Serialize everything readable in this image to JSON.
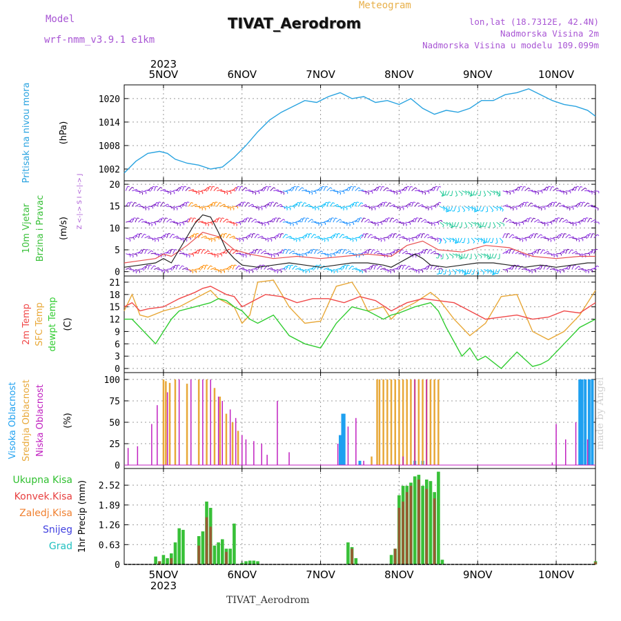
{
  "header": {
    "model_label": "Model",
    "model_name": "wrf-nmm_v3.9.1 e1km",
    "meteogram_label": "Meteogram",
    "title": "TIVAT_Aerodrom",
    "coords": "lon,lat (18.7312E, 42.4N)",
    "elevation": "Nadmorska Visina 2m",
    "model_elevation": "Nadmorska Visina u modelu 109.099m"
  },
  "footer": {
    "title": "TIVAT_Aerodrom",
    "watermark": "made by Angel"
  },
  "time_axis": {
    "year": "2023",
    "ticks": [
      {
        "label": "5NOV",
        "day": 0
      },
      {
        "label": "6NOV",
        "day": 1
      },
      {
        "label": "7NOV",
        "day": 2
      },
      {
        "label": "8NOV",
        "day": 3
      },
      {
        "label": "9NOV",
        "day": 4
      },
      {
        "label": "10NOV",
        "day": 5
      }
    ],
    "start_day": -0.5,
    "end_day": 5.5
  },
  "colors": {
    "pressure": "#29a3e0",
    "temp2m": "#f04848",
    "sfc_temp": "#e8a838",
    "dewpoint": "#30cc30",
    "cloud_high": "#1ea0f0",
    "cloud_mid": "#e8a838",
    "cloud_low": "#c020c0",
    "precip_total": "#38c038",
    "precip_conv": "#c03030",
    "wind_speed": "#202020",
    "wind_gust": "#e85050"
  },
  "chart_data": [
    {
      "type": "line",
      "name": "pressure",
      "ylabel_left": "Pritisak na nivou mora",
      "ylabel_unit": "(hPa)",
      "yticks": [
        1002,
        1008,
        1014,
        1020
      ],
      "ylim": [
        999,
        1023.5
      ],
      "grid": true,
      "series": [
        {
          "x": [
            -0.5,
            -0.35,
            -0.2,
            -0.05,
            0.05,
            0.15,
            0.3,
            0.45,
            0.6,
            0.75,
            0.9,
            1.05,
            1.2,
            1.35,
            1.5,
            1.65,
            1.8,
            1.95,
            2.1,
            2.25,
            2.4,
            2.55,
            2.7,
            2.85,
            3.0,
            3.15,
            3.3,
            3.45,
            3.6,
            3.75,
            3.9,
            4.05,
            4.2,
            4.35,
            4.5,
            4.65,
            4.8,
            4.95,
            5.1,
            5.25,
            5.4,
            5.5
          ],
          "y": [
            1001,
            1004,
            1006,
            1006.5,
            1006,
            1004.5,
            1003.5,
            1003,
            1002,
            1002.5,
            1005,
            1008,
            1011.5,
            1014.5,
            1016.5,
            1018,
            1019.5,
            1019,
            1020.5,
            1021.5,
            1020,
            1020.5,
            1019,
            1019.5,
            1018.5,
            1020,
            1017.5,
            1016,
            1017,
            1016.5,
            1017.5,
            1019.5,
            1019.5,
            1021,
            1021.5,
            1022.5,
            1021,
            1019.5,
            1018.5,
            1018,
            1017,
            1015.5
          ]
        }
      ]
    },
    {
      "type": "line",
      "name": "wind",
      "ylabel_left": "10m Vjetar Brzina i Pravac",
      "ylabel_unit": "(m/s)",
      "compass": "Z <-|-> S   I <-|-> J",
      "yticks": [
        0,
        5,
        10,
        15,
        20
      ],
      "ylim": [
        -1,
        20.8
      ],
      "grid": true,
      "series": [
        {
          "name": "speed",
          "x": [
            -0.5,
            -0.3,
            -0.1,
            0.0,
            0.1,
            0.2,
            0.3,
            0.4,
            0.5,
            0.6,
            0.7,
            0.8,
            0.9,
            1.0,
            1.2,
            1.4,
            1.6,
            1.8,
            2.0,
            2.2,
            2.4,
            2.6,
            2.8,
            2.9,
            3.0,
            3.1,
            3.2,
            3.3,
            3.4,
            3.6,
            3.8,
            4.0,
            4.2,
            4.4,
            4.6,
            4.8,
            5.0,
            5.2,
            5.4,
            5.5
          ],
          "y": [
            1,
            1.5,
            2,
            3,
            2,
            5,
            8,
            11,
            13,
            12.5,
            9,
            5,
            3,
            1.5,
            1,
            1.5,
            2,
            1.5,
            1,
            1.5,
            2,
            2,
            1.5,
            1,
            2,
            3,
            4,
            3,
            1.5,
            1,
            1.5,
            2,
            2,
            1.5,
            1,
            1.5,
            1,
            1.5,
            2,
            2
          ]
        },
        {
          "name": "gust",
          "x": [
            -0.5,
            -0.3,
            -0.1,
            0.0,
            0.1,
            0.3,
            0.5,
            0.7,
            0.9,
            1.1,
            1.4,
            1.7,
            2.0,
            2.3,
            2.6,
            2.9,
            3.1,
            3.3,
            3.5,
            3.8,
            4.1,
            4.4,
            4.7,
            5.0,
            5.3,
            5.5
          ],
          "y": [
            2,
            2.5,
            3,
            4,
            3.5,
            6,
            9,
            8,
            5,
            4,
            3,
            3.5,
            3,
            3.5,
            4,
            3.5,
            6,
            7,
            5,
            4.5,
            6,
            5.5,
            3.5,
            3,
            3.5,
            3.5
          ]
        }
      ]
    },
    {
      "type": "line",
      "name": "temperature",
      "ylabel_left": [
        "2m Temp",
        "SFC Temp",
        "dewpt Temp"
      ],
      "ylabel_unit": "(C)",
      "yticks": [
        0,
        3,
        6,
        9,
        12,
        15,
        18,
        21
      ],
      "ylim": [
        -1,
        22.5
      ],
      "grid": true,
      "series": [
        {
          "name": "2m Temp",
          "x": [
            -0.5,
            -0.4,
            -0.3,
            -0.2,
            0.0,
            0.2,
            0.4,
            0.5,
            0.6,
            0.7,
            0.8,
            0.9,
            1.0,
            1.1,
            1.3,
            1.5,
            1.7,
            1.9,
            2.1,
            2.3,
            2.5,
            2.7,
            2.9,
            3.1,
            3.3,
            3.5,
            3.7,
            3.9,
            4.1,
            4.3,
            4.5,
            4.7,
            4.9,
            5.1,
            5.3,
            5.5
          ],
          "y": [
            15,
            16,
            14,
            14.5,
            15,
            17,
            18.5,
            19.5,
            20,
            19,
            18,
            17.5,
            15,
            16,
            18,
            17.5,
            16,
            17,
            17,
            16,
            17.5,
            16.5,
            14,
            16,
            17,
            16.5,
            16,
            14,
            12,
            12.5,
            13,
            12,
            12.5,
            14,
            13.5,
            16
          ]
        },
        {
          "name": "SFC Temp",
          "x": [
            -0.5,
            -0.4,
            -0.3,
            -0.2,
            0.0,
            0.2,
            0.4,
            0.5,
            0.6,
            0.7,
            0.8,
            0.9,
            1.0,
            1.1,
            1.2,
            1.4,
            1.6,
            1.8,
            2.0,
            2.2,
            2.4,
            2.5,
            2.6,
            2.8,
            2.9,
            3.0,
            3.2,
            3.4,
            3.5,
            3.7,
            3.9,
            4.1,
            4.3,
            4.5,
            4.7,
            4.9,
            5.1,
            5.3,
            5.5
          ],
          "y": [
            14,
            18,
            13,
            12.5,
            14,
            15,
            17,
            18,
            19,
            17,
            16,
            15,
            11,
            13,
            21,
            21.5,
            15,
            11,
            11.5,
            20,
            21,
            18,
            14,
            15,
            12,
            14,
            16,
            18.5,
            17,
            12,
            8,
            11,
            17.5,
            18,
            9,
            7,
            9,
            13,
            19
          ]
        },
        {
          "name": "dewpt Temp",
          "x": [
            -0.5,
            -0.4,
            -0.3,
            -0.2,
            -0.1,
            0.0,
            0.1,
            0.2,
            0.4,
            0.6,
            0.7,
            0.8,
            0.9,
            1.0,
            1.1,
            1.2,
            1.4,
            1.6,
            1.8,
            2.0,
            2.2,
            2.4,
            2.6,
            2.8,
            2.9,
            3.0,
            3.2,
            3.4,
            3.5,
            3.6,
            3.8,
            3.9,
            4.0,
            4.1,
            4.3,
            4.5,
            4.7,
            4.8,
            4.9,
            5.1,
            5.3,
            5.5
          ],
          "y": [
            12,
            12,
            10,
            8,
            6,
            9,
            12,
            14,
            15,
            16,
            17,
            16.5,
            15,
            14,
            12,
            11,
            13,
            8,
            6,
            5,
            11,
            15,
            14,
            12,
            13,
            13.5,
            15,
            16,
            14,
            10,
            3,
            5,
            2,
            3,
            0,
            4,
            0.5,
            1,
            2,
            6,
            10,
            12
          ]
        }
      ]
    },
    {
      "type": "bar",
      "name": "clouds",
      "ylabel_left": [
        "Visoka Oblacnost",
        "Srednja Oblacnost",
        "Niska Oblacnost"
      ],
      "ylabel_unit": "(%)",
      "yticks": [
        0,
        25,
        50,
        75,
        100
      ],
      "ylim": [
        -4,
        108
      ],
      "grid": true,
      "series": [
        {
          "name": "Visoka Oblacnost",
          "x": [
            2.25,
            2.28,
            2.3,
            2.5,
            3.2,
            3.3,
            5.3,
            5.33,
            5.37,
            5.42,
            5.46
          ],
          "y": [
            35,
            60,
            60,
            5,
            5,
            5,
            100,
            100,
            100,
            100,
            100
          ]
        },
        {
          "name": "Srednja Oblacnost",
          "x": [
            0.0,
            0.03,
            0.08,
            0.15,
            0.3,
            0.45,
            0.55,
            0.65,
            0.72,
            0.8,
            0.88,
            0.95,
            2.65,
            2.72,
            2.75,
            2.8,
            2.85,
            2.9,
            2.95,
            3.0,
            3.05,
            3.1,
            3.15,
            3.2,
            3.25,
            3.3,
            3.35,
            3.4,
            3.45,
            3.5
          ],
          "y": [
            100,
            98,
            96,
            100,
            95,
            100,
            100,
            90,
            80,
            60,
            50,
            40,
            10,
            100,
            100,
            100,
            100,
            100,
            100,
            100,
            100,
            100,
            100,
            100,
            100,
            100,
            100,
            100,
            100,
            100
          ]
        },
        {
          "name": "Niska Oblacnost",
          "x": [
            -0.45,
            -0.33,
            -0.15,
            -0.08,
            0.05,
            0.2,
            0.35,
            0.5,
            0.6,
            0.7,
            0.75,
            0.85,
            0.92,
            1.0,
            1.05,
            1.15,
            1.25,
            1.32,
            1.45,
            1.6,
            2.22,
            2.35,
            2.45,
            2.55,
            3.05,
            3.2,
            3.35,
            4.95,
            5.0,
            5.12,
            5.25,
            5.4
          ],
          "y": [
            20,
            22,
            48,
            70,
            85,
            100,
            100,
            100,
            100,
            80,
            75,
            65,
            55,
            35,
            30,
            28,
            25,
            12,
            75,
            15,
            25,
            45,
            55,
            5,
            10,
            100,
            100,
            3,
            48,
            30,
            50,
            30
          ]
        }
      ]
    },
    {
      "type": "bar",
      "name": "precipitation",
      "ylabel_left": [
        "Ukupna Kisa",
        "Konvek.Kisa",
        "Zaledj.Kisa",
        "Snijeg",
        "Grad"
      ],
      "ylabel_unit": "1hr Precip (mm)",
      "yticks": [
        0,
        0.63,
        1.26,
        1.89,
        2.52
      ],
      "ylim": [
        0,
        3.05
      ],
      "grid": true,
      "series": [
        {
          "name": "Ukupna Kisa",
          "x": [
            -0.1,
            -0.05,
            0.0,
            0.05,
            0.1,
            0.15,
            0.2,
            0.25,
            0.45,
            0.5,
            0.55,
            0.6,
            0.65,
            0.7,
            0.75,
            0.8,
            0.85,
            0.9,
            1.0,
            1.05,
            1.1,
            1.15,
            1.2,
            2.35,
            2.4,
            2.45,
            2.9,
            2.95,
            3.0,
            3.05,
            3.1,
            3.15,
            3.2,
            3.25,
            3.3,
            3.35,
            3.4,
            3.45,
            3.5,
            3.55,
            5.5
          ],
          "y": [
            0.25,
            0.1,
            0.3,
            0.2,
            0.35,
            0.7,
            1.15,
            1.1,
            0.9,
            1.05,
            2.0,
            1.8,
            0.6,
            0.7,
            0.8,
            0.5,
            0.5,
            1.3,
            0.05,
            0.1,
            0.12,
            0.12,
            0.1,
            0.7,
            0.55,
            0.2,
            0.3,
            0.5,
            2.2,
            2.5,
            2.5,
            2.6,
            2.8,
            2.85,
            2.5,
            2.7,
            2.65,
            2.3,
            2.95,
            0.15,
            0.1
          ]
        },
        {
          "name": "Konvek.Kisa",
          "x": [
            -0.05,
            0.1,
            0.45,
            0.55,
            0.6,
            0.8,
            2.4,
            2.95,
            3.0,
            3.05,
            3.1,
            3.15,
            3.25,
            3.35,
            3.45,
            5.5
          ],
          "y": [
            0.1,
            0.2,
            0.6,
            1.5,
            1.2,
            0.4,
            0.5,
            0.5,
            1.8,
            2.0,
            2.3,
            2.5,
            2.7,
            2.4,
            2.1,
            0.08
          ]
        }
      ]
    }
  ]
}
